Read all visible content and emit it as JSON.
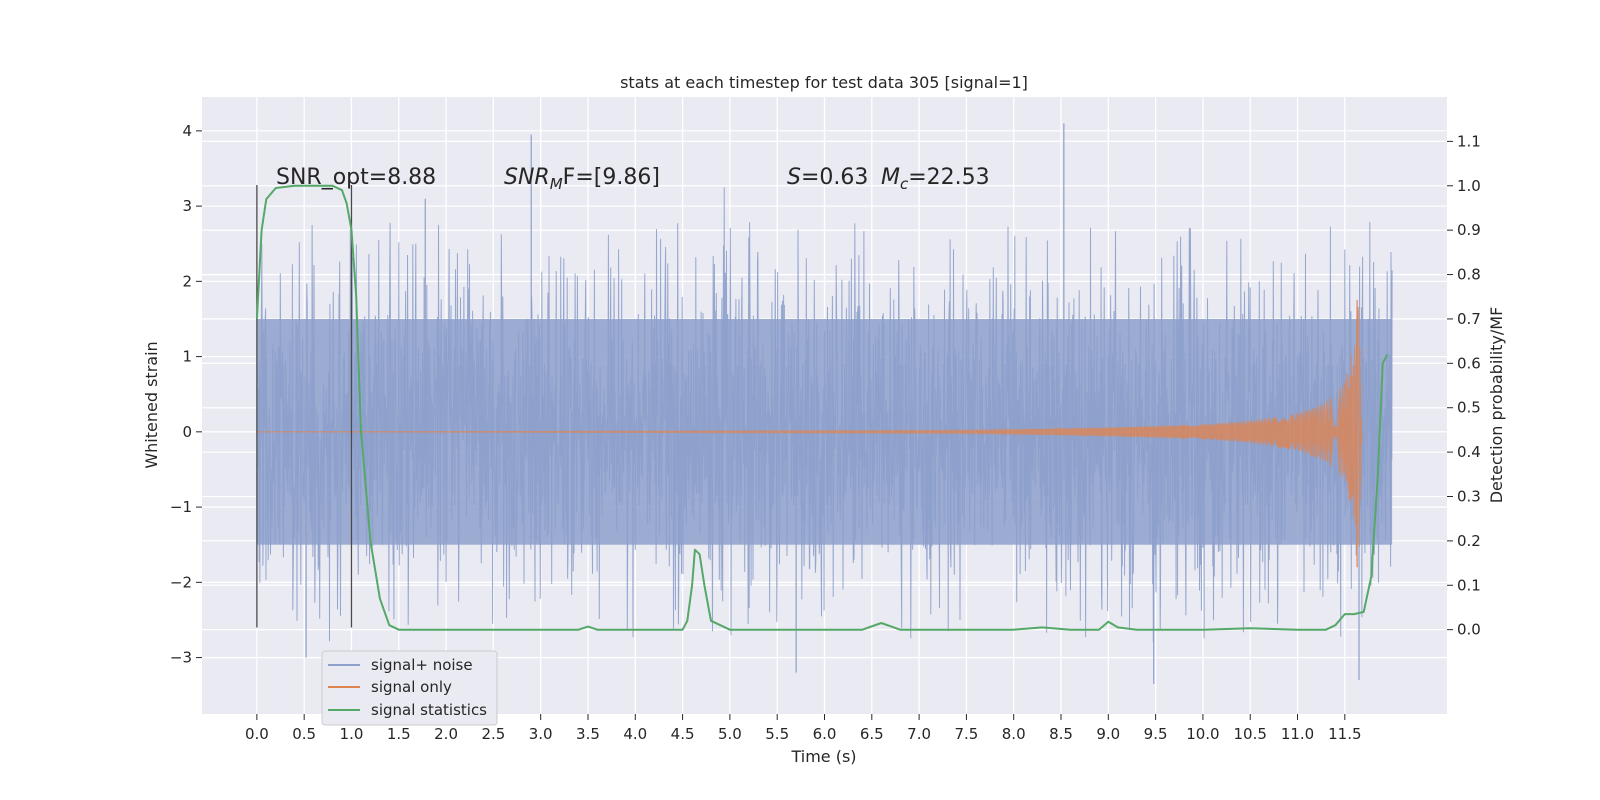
{
  "chart_data": {
    "type": "line",
    "title": "stats at each timestep for test data 305 [signal=1]",
    "xlabel": "Time (s)",
    "ylabel": "Whitened strain",
    "y2label": "Detection probability/MF",
    "xlim": [
      -0.58,
      12.58
    ],
    "ylim": [
      -3.75,
      4.45
    ],
    "y2lim": [
      -0.19,
      1.2
    ],
    "x_ticks": [
      "0.0",
      "0.5",
      "1.0",
      "1.5",
      "2.0",
      "2.5",
      "3.0",
      "3.5",
      "4.0",
      "4.5",
      "5.0",
      "5.5",
      "6.0",
      "6.5",
      "7.0",
      "7.5",
      "8.0",
      "8.5",
      "9.0",
      "9.5",
      "10.0",
      "10.5",
      "11.0",
      "11.5"
    ],
    "y_ticks": [
      4,
      3,
      2,
      1,
      0,
      -1,
      -2,
      -3
    ],
    "y2_ticks": [
      "1.1",
      "1.0",
      "0.9",
      "0.8",
      "0.7",
      "0.6",
      "0.5",
      "0.4",
      "0.3",
      "0.2",
      "0.1",
      "0.0"
    ],
    "grid": true,
    "annotations": {
      "snr_opt": "SNR_opt=8.88",
      "snr_mf_prefix": "SNR",
      "snr_mf_sub": "M",
      "snr_mf_suffix": "F=[9.86]",
      "s_label": "S",
      "s_value": "=0.63",
      "mc_label": "M",
      "mc_sub": "c",
      "mc_value": "=22.53"
    },
    "series": [
      {
        "name": "signal+ noise",
        "color": "#8da0cb",
        "x_range": [
          0.0,
          12.0
        ],
        "envelope": {
          "core_low": -1.2,
          "core_high": 1.2,
          "typical_peak": 2.3,
          "max": 4.1,
          "min": -3.35
        }
      },
      {
        "name": "signal only",
        "color": "#dd8452",
        "description_points": {
          "t": [
            0.0,
            7.5,
            9.0,
            10.0,
            10.5,
            11.0,
            11.3,
            11.5,
            11.6,
            11.65,
            11.68
          ],
          "amplitude": [
            0.0,
            0.02,
            0.06,
            0.1,
            0.15,
            0.25,
            0.4,
            0.65,
            1.2,
            1.75,
            0.0
          ]
        }
      },
      {
        "name": "signal statistics",
        "color": "#55a868",
        "x": [
          0.0,
          0.05,
          0.1,
          0.2,
          0.4,
          0.6,
          0.8,
          0.9,
          0.95,
          1.0,
          1.05,
          1.1,
          1.2,
          1.3,
          1.4,
          1.5,
          3.0,
          3.4,
          3.5,
          3.6,
          4.5,
          4.55,
          4.6,
          4.63,
          4.68,
          4.73,
          4.8,
          5.0,
          6.4,
          6.6,
          6.8,
          8.0,
          8.3,
          8.6,
          8.9,
          9.0,
          9.1,
          9.3,
          10.0,
          10.5,
          11.0,
          11.3,
          11.4,
          11.5,
          11.6,
          11.7,
          11.78,
          11.85,
          11.9,
          11.95
        ],
        "y": [
          0.7,
          0.9,
          0.97,
          0.995,
          1.0,
          1.0,
          1.0,
          0.99,
          0.96,
          0.9,
          0.75,
          0.45,
          0.2,
          0.07,
          0.01,
          0.0,
          0.0,
          0.0,
          0.007,
          0.0,
          0.0,
          0.02,
          0.1,
          0.18,
          0.17,
          0.1,
          0.02,
          0.0,
          0.0,
          0.015,
          0.0,
          0.0,
          0.005,
          0.0,
          0.0,
          0.018,
          0.005,
          0.0,
          0.0,
          0.003,
          0.0,
          0.0,
          0.01,
          0.035,
          0.035,
          0.04,
          0.12,
          0.35,
          0.6,
          0.62
        ]
      }
    ],
    "vertical_lines": [
      {
        "x": 0.0,
        "y_range": [
          -2.6,
          3.28
        ],
        "color": "#4a4a4a"
      },
      {
        "x": 1.0,
        "y_range": [
          -2.6,
          3.28
        ],
        "color": "#4a4a4a"
      }
    ],
    "legend_position": "lower-left"
  }
}
